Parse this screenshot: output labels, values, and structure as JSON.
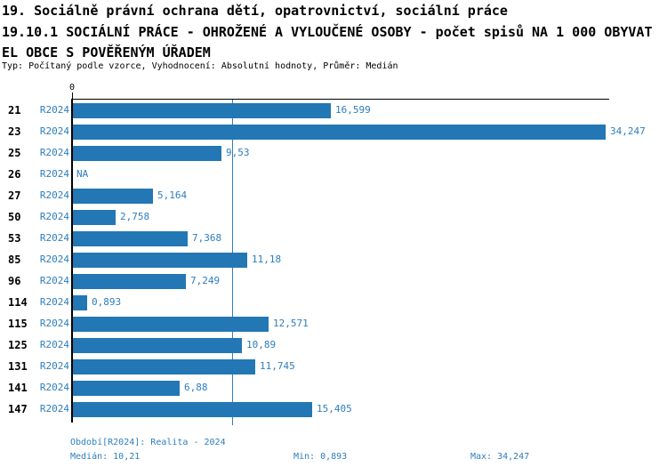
{
  "header": {
    "title_line1": "19. Sociálně právní ochrana dětí, opatrovnictví, sociální práce",
    "title_line2": "19.10.1 SOCIÁLNÍ PRÁCE - OHROŽENÉ A VYLOUČENÉ OSOBY - počet spisů NA 1 000 OBYVAT",
    "title_line3": "EL OBCE S POVĚŘENÝM ÚŘADEM",
    "meta": "Typ: Počítaný podle vzorce, Vyhodnocení: Absolutní hodnoty, Průměr: Medián"
  },
  "chart_data": {
    "type": "bar",
    "orientation": "horizontal",
    "series_label": "R2024",
    "categories": [
      "21",
      "23",
      "25",
      "26",
      "27",
      "50",
      "53",
      "85",
      "96",
      "114",
      "115",
      "125",
      "131",
      "141",
      "147"
    ],
    "values": [
      16.599,
      34.247,
      9.53,
      null,
      5.164,
      2.758,
      7.368,
      11.18,
      7.249,
      0.893,
      12.571,
      10.89,
      11.745,
      6.88,
      15.405
    ],
    "value_labels": [
      "16,599",
      "34,247",
      "9,53",
      "NA",
      "5,164",
      "2,758",
      "7,368",
      "11,18",
      "7,249",
      "0,893",
      "12,571",
      "10,89",
      "11,745",
      "6,88",
      "15,405"
    ],
    "xlim": [
      0,
      34.247
    ],
    "zero_tick_label": "0",
    "median_line_value": 10.21,
    "grid": false,
    "legend": "none",
    "bar_color": "#2277B4",
    "text_color": "#2E7EBC",
    "axis_color": "#000000"
  },
  "footer": {
    "period": "Období[R2024]: Realita - 2024",
    "median": "Medián: 10,21",
    "min": "Min: 0,893",
    "max": "Max: 34,247"
  }
}
